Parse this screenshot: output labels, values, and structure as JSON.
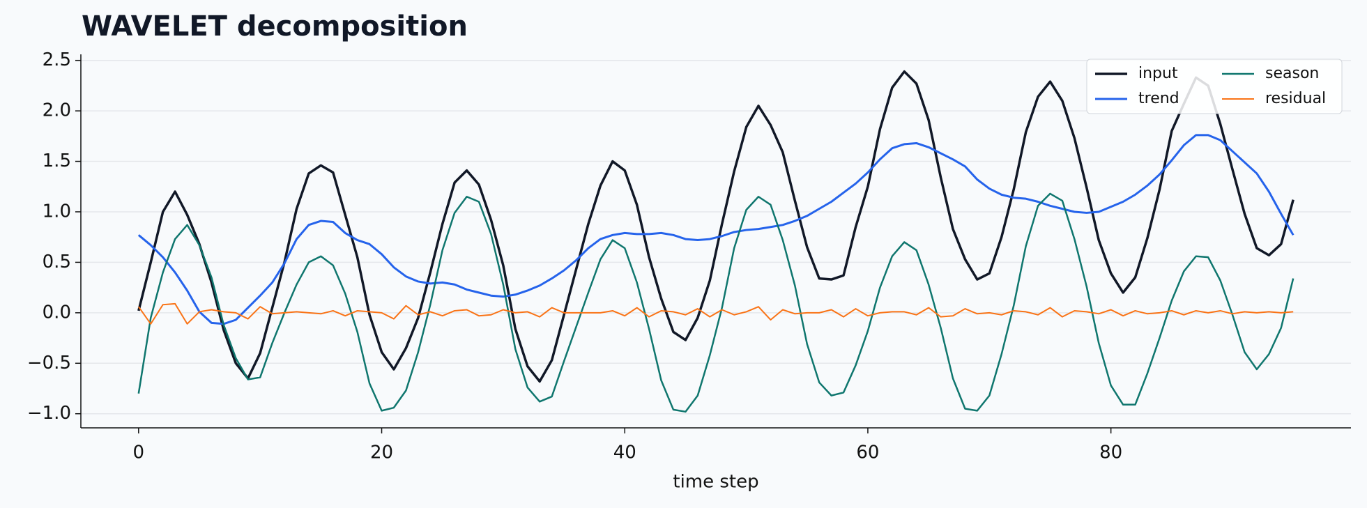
{
  "chart_data": {
    "type": "line",
    "title": "WAVELET decomposition",
    "x_label": "time step",
    "x": [
      0,
      1,
      2,
      3,
      4,
      5,
      6,
      7,
      8,
      9,
      10,
      11,
      12,
      13,
      14,
      15,
      16,
      17,
      18,
      19,
      20,
      21,
      22,
      23,
      24,
      25,
      26,
      27,
      28,
      29,
      30,
      31,
      32,
      33,
      34,
      35,
      36,
      37,
      38,
      39,
      40,
      41,
      42,
      43,
      44,
      45,
      46,
      47,
      48,
      49,
      50,
      51,
      52,
      53,
      54,
      55,
      56,
      57,
      58,
      59,
      60,
      61,
      62,
      63,
      64,
      65,
      66,
      67,
      68,
      69,
      70,
      71,
      72,
      73,
      74,
      75,
      76,
      77,
      78,
      79,
      80,
      81,
      82,
      83,
      84,
      85,
      86,
      87,
      88,
      89,
      90,
      91,
      92,
      93,
      94,
      95
    ],
    "series": [
      {
        "name": "input",
        "color": "#111827",
        "values": [
          0.02,
          0.5,
          1.0,
          1.2,
          0.97,
          0.68,
          0.3,
          -0.17,
          -0.5,
          -0.65,
          -0.4,
          0.05,
          0.5,
          1.03,
          1.38,
          1.46,
          1.39,
          0.97,
          0.55,
          -0.02,
          -0.39,
          -0.56,
          -0.35,
          -0.05,
          0.4,
          0.88,
          1.29,
          1.41,
          1.27,
          0.92,
          0.47,
          -0.16,
          -0.53,
          -0.68,
          -0.47,
          -0.02,
          0.43,
          0.88,
          1.26,
          1.5,
          1.41,
          1.07,
          0.55,
          0.14,
          -0.19,
          -0.27,
          -0.05,
          0.32,
          0.88,
          1.4,
          1.84,
          2.05,
          1.86,
          1.59,
          1.11,
          0.65,
          0.34,
          0.33,
          0.37,
          0.85,
          1.25,
          1.82,
          2.23,
          2.39,
          2.27,
          1.91,
          1.34,
          0.83,
          0.53,
          0.33,
          0.39,
          0.75,
          1.22,
          1.79,
          2.14,
          2.29,
          2.1,
          1.73,
          1.24,
          0.72,
          0.39,
          0.2,
          0.35,
          0.74,
          1.22,
          1.8,
          2.07,
          2.33,
          2.25,
          1.87,
          1.42,
          0.98,
          0.64,
          0.57,
          0.68,
          1.12
        ]
      },
      {
        "name": "trend",
        "color": "#2563eb",
        "values": [
          0.77,
          0.67,
          0.55,
          0.4,
          0.22,
          0.01,
          -0.1,
          -0.11,
          -0.07,
          0.05,
          0.17,
          0.3,
          0.49,
          0.73,
          0.87,
          0.91,
          0.9,
          0.79,
          0.72,
          0.68,
          0.58,
          0.45,
          0.36,
          0.31,
          0.29,
          0.3,
          0.28,
          0.23,
          0.2,
          0.17,
          0.16,
          0.18,
          0.22,
          0.27,
          0.34,
          0.42,
          0.52,
          0.64,
          0.73,
          0.77,
          0.79,
          0.78,
          0.78,
          0.79,
          0.77,
          0.73,
          0.72,
          0.73,
          0.76,
          0.8,
          0.82,
          0.83,
          0.85,
          0.87,
          0.91,
          0.96,
          1.03,
          1.1,
          1.19,
          1.28,
          1.39,
          1.52,
          1.63,
          1.67,
          1.68,
          1.64,
          1.58,
          1.52,
          1.45,
          1.32,
          1.23,
          1.17,
          1.14,
          1.13,
          1.1,
          1.06,
          1.03,
          1.0,
          0.99,
          1.0,
          1.05,
          1.1,
          1.17,
          1.26,
          1.37,
          1.51,
          1.66,
          1.76,
          1.76,
          1.71,
          1.6,
          1.49,
          1.38,
          1.2,
          0.98,
          0.77
        ]
      },
      {
        "name": "season",
        "color": "#0f766e",
        "values": [
          -0.8,
          -0.05,
          0.4,
          0.73,
          0.87,
          0.67,
          0.35,
          -0.12,
          -0.45,
          -0.66,
          -0.64,
          -0.3,
          0.0,
          0.28,
          0.5,
          0.56,
          0.47,
          0.19,
          -0.19,
          -0.7,
          -0.97,
          -0.94,
          -0.77,
          -0.39,
          0.08,
          0.62,
          0.99,
          1.15,
          1.1,
          0.78,
          0.28,
          -0.36,
          -0.74,
          -0.88,
          -0.83,
          -0.48,
          -0.14,
          0.2,
          0.53,
          0.72,
          0.64,
          0.3,
          -0.16,
          -0.67,
          -0.96,
          -0.98,
          -0.82,
          -0.42,
          0.05,
          0.64,
          1.02,
          1.15,
          1.07,
          0.72,
          0.27,
          -0.31,
          -0.69,
          -0.82,
          -0.79,
          -0.52,
          -0.18,
          0.25,
          0.56,
          0.7,
          0.62,
          0.28,
          -0.15,
          -0.65,
          -0.95,
          -0.97,
          -0.82,
          -0.41,
          0.07,
          0.66,
          1.06,
          1.18,
          1.11,
          0.73,
          0.26,
          -0.3,
          -0.72,
          -0.91,
          -0.91,
          -0.6,
          -0.25,
          0.12,
          0.41,
          0.56,
          0.55,
          0.32,
          -0.02,
          -0.39,
          -0.56,
          -0.41,
          -0.15,
          0.34
        ]
      },
      {
        "name": "residual",
        "color": "#f97316",
        "values": [
          0.06,
          -0.11,
          0.08,
          0.09,
          -0.11,
          0.01,
          0.03,
          0.01,
          0.0,
          -0.06,
          0.06,
          -0.01,
          0.0,
          0.01,
          0.0,
          -0.01,
          0.02,
          -0.03,
          0.02,
          0.01,
          0.0,
          -0.06,
          0.07,
          -0.02,
          0.01,
          -0.03,
          0.02,
          0.03,
          -0.03,
          -0.02,
          0.03,
          0.0,
          0.01,
          -0.04,
          0.05,
          0.0,
          0.0,
          0.0,
          0.0,
          0.02,
          -0.03,
          0.05,
          -0.04,
          0.02,
          0.01,
          -0.02,
          0.04,
          -0.04,
          0.03,
          -0.02,
          0.01,
          0.06,
          -0.07,
          0.03,
          -0.01,
          0.0,
          0.0,
          0.03,
          -0.04,
          0.04,
          -0.03,
          0.0,
          0.01,
          0.01,
          -0.02,
          0.05,
          -0.04,
          -0.03,
          0.04,
          -0.01,
          0.0,
          -0.02,
          0.02,
          0.01,
          -0.02,
          0.05,
          -0.04,
          0.02,
          0.01,
          -0.01,
          0.03,
          -0.03,
          0.02,
          -0.01,
          0.0,
          0.02,
          -0.02,
          0.02,
          0.0,
          0.02,
          -0.01,
          0.01,
          0.0,
          0.01,
          0.0,
          0.01
        ]
      }
    ],
    "xlim": [
      -4.75,
      99.75
    ],
    "ylim": [
      -1.14,
      2.56
    ],
    "xticks": [
      0,
      20,
      40,
      60,
      80
    ],
    "yticks": [
      {
        "value": -1,
        "label": "−1.0"
      },
      {
        "value": -0.5,
        "label": "−0.5"
      },
      {
        "value": 0,
        "label": "0.0"
      },
      0.5,
      {
        "value": 1,
        "label": "1.0"
      },
      1.5,
      {
        "value": 2,
        "label": "2.0"
      },
      2.5
    ],
    "grid": "y",
    "legend": "upper right"
  }
}
